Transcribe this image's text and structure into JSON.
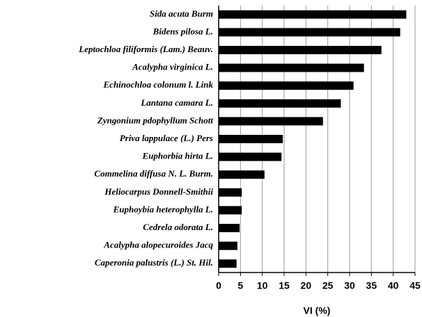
{
  "chart_data": {
    "type": "bar",
    "orientation": "horizontal",
    "xlabel": "VI (%)",
    "categories": [
      "Sida acuta Burm",
      "Bidens pilosa L.",
      "Leptochloa filiformis (Lam.) Beauv.",
      "Acalypha virginica L.",
      "Echinochloa colonum l. Link",
      "Lantana camara L.",
      "Zyngonium pdophyllum Schott",
      "Priva lappulace (L.) Pers",
      "Euphorbia hirta L.",
      "Commelina diffusa N. L. Burm.",
      "Heliocarpus Donnell-Smithii",
      "Euphoybia heterophylla L.",
      "Cedrela odorata L.",
      "Acalypha alopecuroides Jacq",
      "Caperonia palustris (L.) St. Hil."
    ],
    "values": [
      43,
      41.6,
      37.3,
      33.3,
      30.9,
      28,
      23.9,
      14.7,
      14.4,
      10.5,
      5.3,
      5.3,
      4.8,
      4.3,
      4.1
    ],
    "color": "#000000",
    "xlim": [
      0,
      45
    ],
    "xticks": [
      0,
      5,
      10,
      15,
      20,
      25,
      30,
      35,
      40,
      45
    ],
    "grid": true
  }
}
